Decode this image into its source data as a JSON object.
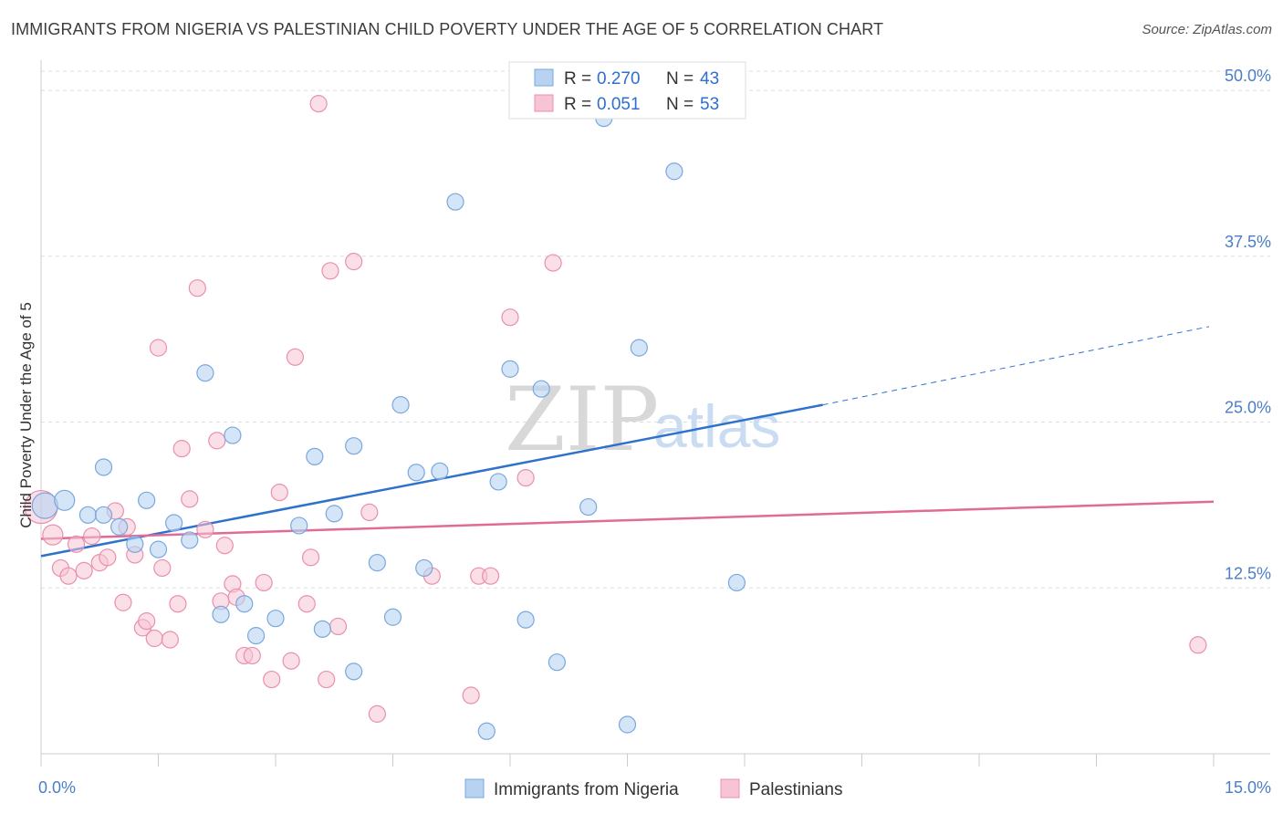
{
  "title": "IMMIGRANTS FROM NIGERIA VS PALESTINIAN CHILD POVERTY UNDER THE AGE OF 5 CORRELATION CHART",
  "source": "Source: ZipAtlas.com",
  "watermark": {
    "zip": "ZIP",
    "atlas": "atlas"
  },
  "colors": {
    "blue_fill": "#b8d3f2",
    "blue_stroke": "#7aa7dd",
    "blue_line": "#2f72cc",
    "pink_fill": "#f6c4d4",
    "pink_stroke": "#ea8fae",
    "pink_line": "#e06b95",
    "grid": "#dddddd",
    "axis_label": "#4a7ec8"
  },
  "legend": {
    "rows": [
      {
        "r_label": "R =",
        "r_value": "0.270",
        "n_label": "N =",
        "n_value": "43"
      },
      {
        "r_label": "R =",
        "r_value": "0.051",
        "n_label": "N =",
        "n_value": "53"
      }
    ]
  },
  "bottom_legend": [
    "Immigrants from Nigeria",
    "Palestinians"
  ],
  "chart_data": {
    "type": "scatter",
    "title": "IMMIGRANTS FROM NIGERIA VS PALESTINIAN CHILD POVERTY UNDER THE AGE OF 5 CORRELATION CHART",
    "xlabel": "",
    "ylabel": "Child Poverty Under the Age of 5",
    "xlim": [
      0,
      15
    ],
    "ylim": [
      0,
      52
    ],
    "x_tick_labels": [
      {
        "value": 0,
        "label": "0.0%"
      },
      {
        "value": 15,
        "label": "15.0%"
      }
    ],
    "y_tick_labels": [
      {
        "value": 12.5,
        "label": "12.5%"
      },
      {
        "value": 25,
        "label": "25.0%"
      },
      {
        "value": 37.5,
        "label": "37.5%"
      },
      {
        "value": 50,
        "label": "50.0%"
      }
    ],
    "grid": true,
    "legend_position": "top-center",
    "series": [
      {
        "name": "Immigrants from Nigeria",
        "color": "#b8d3f2",
        "points": [
          [
            0.05,
            18.7
          ],
          [
            0.3,
            19.1
          ],
          [
            0.6,
            18.0
          ],
          [
            0.8,
            18.0
          ],
          [
            0.8,
            21.6
          ],
          [
            1.0,
            17.1
          ],
          [
            1.2,
            15.8
          ],
          [
            1.35,
            19.1
          ],
          [
            1.5,
            15.4
          ],
          [
            1.7,
            17.4
          ],
          [
            1.9,
            16.1
          ],
          [
            2.1,
            28.7
          ],
          [
            2.3,
            10.5
          ],
          [
            2.45,
            24.0
          ],
          [
            2.6,
            11.3
          ],
          [
            2.75,
            8.9
          ],
          [
            3.0,
            10.2
          ],
          [
            3.3,
            17.2
          ],
          [
            3.5,
            22.4
          ],
          [
            3.6,
            9.4
          ],
          [
            3.75,
            18.1
          ],
          [
            4.0,
            6.2
          ],
          [
            4.0,
            23.2
          ],
          [
            4.3,
            14.4
          ],
          [
            4.5,
            10.3
          ],
          [
            4.6,
            26.3
          ],
          [
            4.8,
            21.2
          ],
          [
            4.9,
            14.0
          ],
          [
            5.1,
            21.3
          ],
          [
            5.3,
            41.6
          ],
          [
            5.7,
            1.7
          ],
          [
            5.85,
            20.5
          ],
          [
            6.0,
            29.0
          ],
          [
            6.2,
            10.1
          ],
          [
            6.4,
            27.5
          ],
          [
            6.6,
            6.9
          ],
          [
            6.8,
            50.0
          ],
          [
            7.0,
            18.6
          ],
          [
            7.2,
            47.9
          ],
          [
            7.5,
            2.2
          ],
          [
            7.65,
            30.6
          ],
          [
            8.1,
            43.9
          ],
          [
            8.9,
            12.9
          ]
        ],
        "trend": {
          "x": [
            0,
            10.0
          ],
          "y": [
            14.9,
            26.3
          ],
          "dashed_to": [
            15,
            32.2
          ]
        }
      },
      {
        "name": "Palestinians",
        "color": "#f6c4d4",
        "points": [
          [
            0.0,
            18.6
          ],
          [
            0.15,
            16.5
          ],
          [
            0.25,
            14.0
          ],
          [
            0.35,
            13.4
          ],
          [
            0.45,
            15.8
          ],
          [
            0.55,
            13.8
          ],
          [
            0.65,
            16.4
          ],
          [
            0.75,
            14.4
          ],
          [
            0.85,
            14.8
          ],
          [
            0.95,
            18.3
          ],
          [
            1.05,
            11.4
          ],
          [
            1.1,
            17.1
          ],
          [
            1.2,
            15.0
          ],
          [
            1.3,
            9.5
          ],
          [
            1.35,
            10.0
          ],
          [
            1.45,
            8.7
          ],
          [
            1.5,
            30.6
          ],
          [
            1.55,
            14.0
          ],
          [
            1.65,
            8.6
          ],
          [
            1.75,
            11.3
          ],
          [
            1.8,
            23.0
          ],
          [
            1.9,
            19.2
          ],
          [
            2.0,
            35.1
          ],
          [
            2.1,
            16.9
          ],
          [
            2.25,
            23.6
          ],
          [
            2.3,
            11.5
          ],
          [
            2.35,
            15.7
          ],
          [
            2.45,
            12.8
          ],
          [
            2.5,
            11.8
          ],
          [
            2.6,
            7.4
          ],
          [
            2.7,
            7.4
          ],
          [
            2.85,
            12.9
          ],
          [
            2.95,
            5.6
          ],
          [
            3.05,
            19.7
          ],
          [
            3.2,
            7.0
          ],
          [
            3.25,
            29.9
          ],
          [
            3.4,
            11.3
          ],
          [
            3.45,
            14.8
          ],
          [
            3.55,
            49.0
          ],
          [
            3.65,
            5.6
          ],
          [
            3.7,
            36.4
          ],
          [
            3.8,
            9.6
          ],
          [
            4.0,
            37.1
          ],
          [
            4.2,
            18.2
          ],
          [
            4.3,
            3.0
          ],
          [
            5.0,
            13.4
          ],
          [
            5.5,
            4.4
          ],
          [
            5.6,
            13.4
          ],
          [
            5.75,
            13.4
          ],
          [
            6.0,
            32.9
          ],
          [
            6.2,
            20.8
          ],
          [
            6.55,
            37.0
          ],
          [
            14.8,
            8.2
          ]
        ],
        "trend": {
          "x": [
            0,
            15
          ],
          "y": [
            16.2,
            19.0
          ]
        }
      }
    ]
  }
}
